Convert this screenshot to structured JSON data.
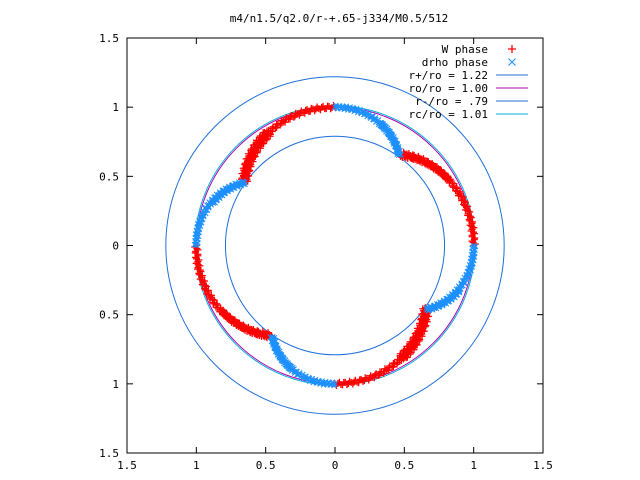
{
  "chart_data": {
    "type": "scatter",
    "title": "m4/n1.5/q2.0/r-+.65-j334/M0.5/512",
    "xlabel": "",
    "ylabel": "",
    "xlim": [
      -1.5,
      1.5
    ],
    "ylim": [
      -1.5,
      1.5
    ],
    "x_tick_values": [
      -1.5,
      -1,
      -0.5,
      0,
      0.5,
      1,
      1.5
    ],
    "x_tick_labels": [
      "1.5",
      "1",
      "0.5",
      "0",
      "0.5",
      "1",
      "1.5"
    ],
    "y_tick_values": [
      1.5,
      1,
      0.5,
      0,
      -0.5,
      -1,
      -1.5
    ],
    "y_tick_labels": [
      "1.5",
      "1",
      "0.5",
      "0",
      "0.5",
      "1",
      "1.5"
    ],
    "legend_position": "top-right",
    "grid": false,
    "series": [
      {
        "name": "W phase",
        "marker": "plus",
        "color": "#ff0000",
        "lobes": [
          {
            "r_start": 1.0,
            "r_end": 0.8,
            "theta_start_deg": 90,
            "theta_end_deg": 145
          },
          {
            "r_start": 1.0,
            "r_end": 0.8,
            "theta_start_deg": 0,
            "theta_end_deg": 55
          },
          {
            "r_start": 1.0,
            "r_end": 0.8,
            "theta_start_deg": -90,
            "theta_end_deg": -35
          },
          {
            "r_start": 1.0,
            "r_end": 0.8,
            "theta_start_deg": 180,
            "theta_end_deg": 235
          }
        ]
      },
      {
        "name": "drho phase",
        "marker": "x",
        "color": "#1e90ff",
        "lobes": [
          {
            "r_start": 1.0,
            "r_end": 0.8,
            "theta_start_deg": 90,
            "theta_end_deg": 55
          },
          {
            "r_start": 1.0,
            "r_end": 0.8,
            "theta_start_deg": 0,
            "theta_end_deg": -35
          },
          {
            "r_start": 1.0,
            "r_end": 0.8,
            "theta_start_deg": -90,
            "theta_end_deg": -125
          },
          {
            "r_start": 1.0,
            "r_end": 0.8,
            "theta_start_deg": 180,
            "theta_end_deg": 145
          }
        ]
      }
    ],
    "circles": [
      {
        "name": "r+/ro = 1.22",
        "radius": 1.22,
        "color": "#1e6fd9"
      },
      {
        "name": "ro/ro = 1.00",
        "radius": 1.0,
        "color": "#b000b0"
      },
      {
        "name": "r-/ro = .79",
        "radius": 0.79,
        "color": "#1e6fd9"
      },
      {
        "name": "rc/ro = 1.01",
        "radius": 1.01,
        "color": "#00b0d8"
      }
    ]
  }
}
